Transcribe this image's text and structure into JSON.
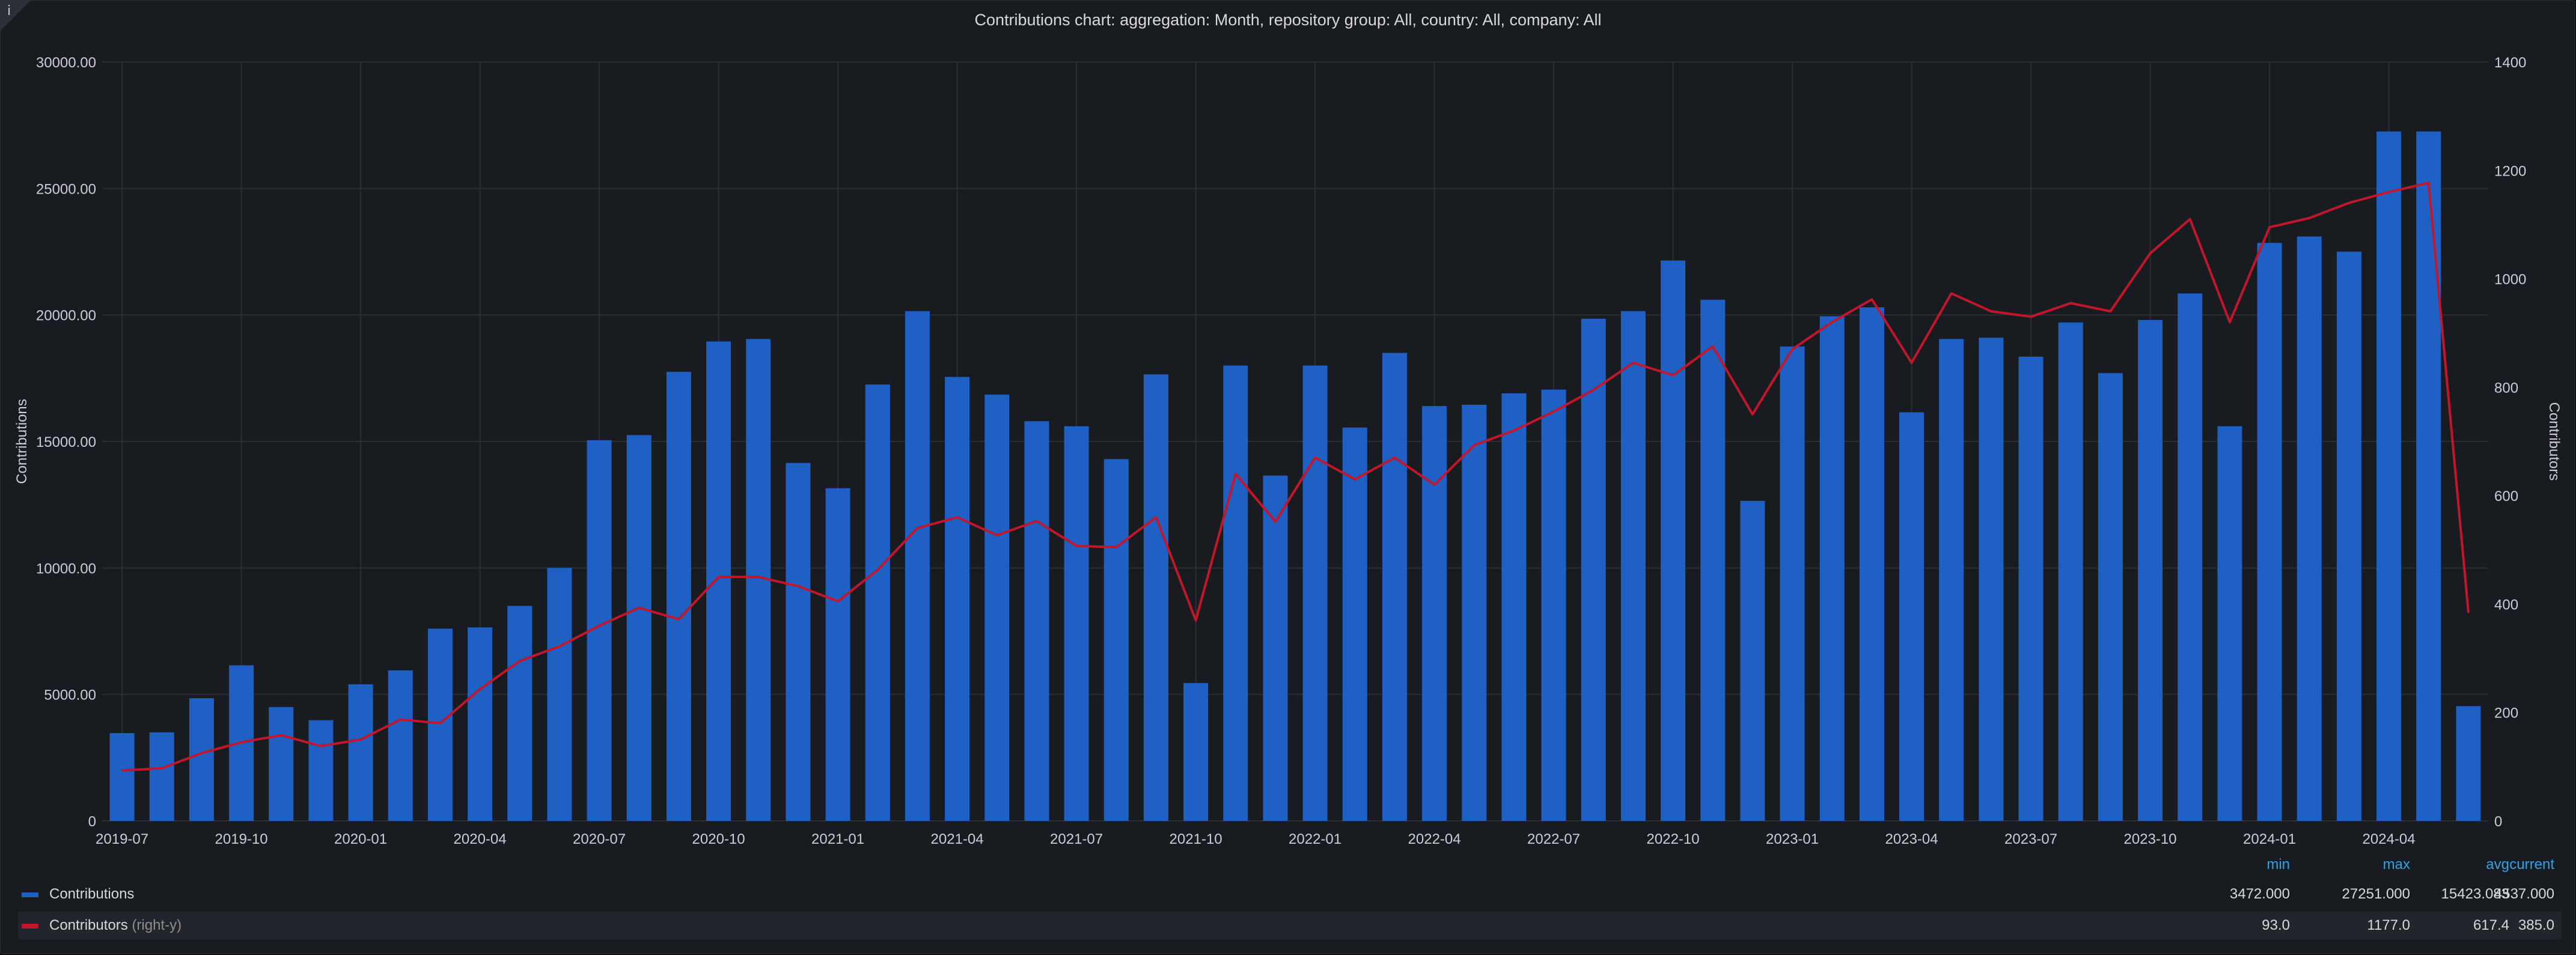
{
  "title": "Contributions chart: aggregation: Month, repository group: All, country: All, company: All",
  "icons": {
    "info": "info-icon"
  },
  "colors": {
    "contributions": "#1f60c4",
    "contributors": "#c4162a",
    "legend_header": "#33a2e5"
  },
  "legend": {
    "headers": {
      "min": "min",
      "max": "max",
      "avg": "avg",
      "current": "current"
    },
    "rows": [
      {
        "name": "Contributions",
        "suffix": "",
        "min": "3472.000",
        "max": "27251.000",
        "avg": "15423.083",
        "current": "4537.000"
      },
      {
        "name": "Contributors",
        "suffix": "(right-y)",
        "min": "93.0",
        "max": "1177.0",
        "avg": "617.4",
        "current": "385.0"
      }
    ]
  },
  "chart_data": {
    "type": "bar",
    "title": "Contributions chart: aggregation: Month, repository group: All, country: All, company: All",
    "ylabel": "Contributions",
    "ylabel_right": "Contributors",
    "ylim": [
      0,
      30000
    ],
    "ylim_right": [
      0,
      1400
    ],
    "yticks": [
      "0",
      "5000.00",
      "10000.00",
      "15000.00",
      "20000.00",
      "25000.00",
      "30000.00"
    ],
    "yticks_right": [
      "0",
      "200",
      "400",
      "600",
      "800",
      "1000",
      "1200",
      "1400"
    ],
    "xticks": [
      "2019-07",
      "2019-10",
      "2020-01",
      "2020-04",
      "2020-07",
      "2020-10",
      "2021-01",
      "2021-04",
      "2021-07",
      "2021-10",
      "2022-01",
      "2022-04",
      "2022-07",
      "2022-10",
      "2023-01",
      "2023-04",
      "2023-07",
      "2023-10",
      "2024-01",
      "2024-04"
    ],
    "grid": true,
    "legend": "bottom",
    "categories": [
      "2019-07",
      "2019-08",
      "2019-09",
      "2019-10",
      "2019-11",
      "2019-12",
      "2020-01",
      "2020-02",
      "2020-03",
      "2020-04",
      "2020-05",
      "2020-06",
      "2020-07",
      "2020-08",
      "2020-09",
      "2020-10",
      "2020-11",
      "2020-12",
      "2021-01",
      "2021-02",
      "2021-03",
      "2021-04",
      "2021-05",
      "2021-06",
      "2021-07",
      "2021-08",
      "2021-09",
      "2021-10",
      "2021-11",
      "2021-12",
      "2022-01",
      "2022-02",
      "2022-03",
      "2022-04",
      "2022-05",
      "2022-06",
      "2022-07",
      "2022-08",
      "2022-09",
      "2022-10",
      "2022-11",
      "2022-12",
      "2023-01",
      "2023-02",
      "2023-03",
      "2023-04",
      "2023-05",
      "2023-06",
      "2023-07",
      "2023-08",
      "2023-09",
      "2023-10",
      "2023-11",
      "2023-12",
      "2024-01",
      "2024-02",
      "2024-03",
      "2024-04",
      "2024-05",
      "2024-06"
    ],
    "series": [
      {
        "name": "Contributions",
        "axis": "left",
        "type": "bar",
        "values": [
          3472,
          3500,
          4850,
          6150,
          4500,
          3980,
          5400,
          5950,
          7600,
          7650,
          8500,
          10000,
          15050,
          15250,
          17750,
          18950,
          19050,
          14150,
          13150,
          17250,
          20150,
          17550,
          16850,
          15800,
          15600,
          14300,
          17650,
          5450,
          18000,
          13650,
          18000,
          15550,
          18500,
          16400,
          16450,
          16900,
          17050,
          19850,
          20150,
          22150,
          20600,
          12650,
          18750,
          19950,
          20300,
          16150,
          19050,
          19100,
          18350,
          19700,
          17700,
          19800,
          20850,
          15600,
          22850,
          23100,
          22500,
          27251,
          27251,
          4537
        ]
      },
      {
        "name": "Contributors",
        "axis": "right",
        "type": "line",
        "values": [
          93,
          97,
          125,
          145,
          158,
          138,
          150,
          187,
          180,
          243,
          295,
          322,
          360,
          393,
          372,
          450,
          450,
          433,
          405,
          463,
          540,
          560,
          527,
          553,
          507,
          505,
          560,
          370,
          640,
          552,
          670,
          630,
          670,
          620,
          693,
          720,
          755,
          795,
          845,
          822,
          875,
          750,
          870,
          920,
          962,
          845,
          973,
          940,
          930,
          955,
          940,
          1047,
          1110,
          920,
          1095,
          1112,
          1140,
          1160,
          1177,
          385
        ]
      }
    ]
  }
}
